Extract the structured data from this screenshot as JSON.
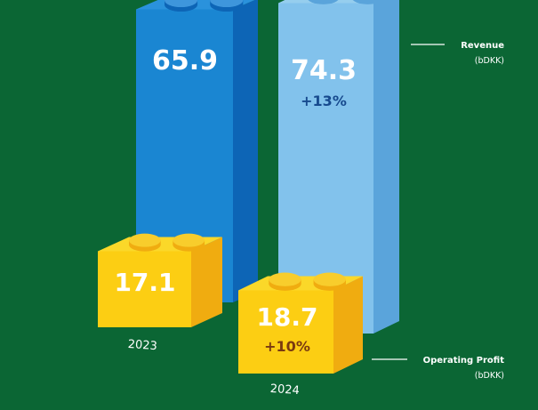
{
  "chart_data": {
    "type": "bar",
    "categories": [
      "2023",
      "2024"
    ],
    "series": [
      {
        "name": "Revenue",
        "unit": "(bDKK)",
        "values": [
          65.9,
          74.3
        ],
        "value_labels": [
          "65.9",
          "74.3"
        ],
        "change_labels": [
          "",
          "+13%"
        ]
      },
      {
        "name": "Operating Profit",
        "unit": "(bDKK)",
        "values": [
          17.1,
          18.7
        ],
        "value_labels": [
          "17.1",
          "18.7"
        ],
        "change_labels": [
          "",
          "+10%"
        ]
      }
    ],
    "colors": {
      "background": "#0b6634",
      "revenue_2023_front": "#1a86d2",
      "revenue_2023_side": "#0d65b6",
      "revenue_2023_top": "#2a92dc",
      "revenue_2024_front": "#82c2ec",
      "revenue_2024_side": "#5aa4db",
      "revenue_2024_top": "#96ceee",
      "profit_front": "#fcce13",
      "profit_side": "#f0ac10",
      "profit_top": "#fbd829",
      "stud_2023": "#3e96dc",
      "stud_2024": "#9fd2f2",
      "stud_profit": "#f8cd2c",
      "change_text_revenue": "#174a8e",
      "change_text_profit": "#7a3a10"
    }
  }
}
